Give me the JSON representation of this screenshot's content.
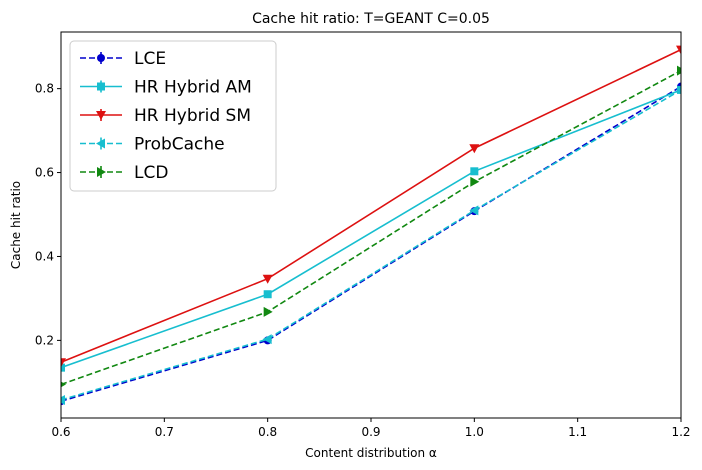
{
  "chart_data": {
    "type": "line",
    "title": "Cache hit ratio: T=GEANT C=0.05",
    "xlabel": "Content distribution α",
    "ylabel": "Cache hit ratio",
    "xlim": [
      0.6,
      1.2
    ],
    "ylim": [
      0.015,
      0.935
    ],
    "xticks": [
      "0.6",
      "0.7",
      "0.8",
      "0.9",
      "1.0",
      "1.1",
      "1.2"
    ],
    "yticks": [
      "0.2",
      "0.4",
      "0.6",
      "0.8"
    ],
    "grid": false,
    "legend_position": "top-left",
    "x": [
      0.6,
      0.8,
      1.0,
      1.2
    ],
    "series": [
      {
        "name": "LCE",
        "values": [
          0.055,
          0.2,
          0.508,
          0.805
        ],
        "color": "#0000cc",
        "dash": true,
        "marker": "circle"
      },
      {
        "name": "HR Hybrid AM",
        "values": [
          0.135,
          0.31,
          0.603,
          0.797
        ],
        "color": "#17becf",
        "dash": false,
        "marker": "square"
      },
      {
        "name": "HR Hybrid SM",
        "values": [
          0.148,
          0.347,
          0.658,
          0.893
        ],
        "color": "#dd1111",
        "dash": false,
        "marker": "triangle-down"
      },
      {
        "name": "ProbCache",
        "values": [
          0.058,
          0.203,
          0.51,
          0.797
        ],
        "color": "#17becf",
        "dash": true,
        "marker": "triangle-left"
      },
      {
        "name": "LCD",
        "values": [
          0.095,
          0.268,
          0.578,
          0.843
        ],
        "color": "#118811",
        "dash": true,
        "marker": "triangle-right"
      }
    ]
  }
}
